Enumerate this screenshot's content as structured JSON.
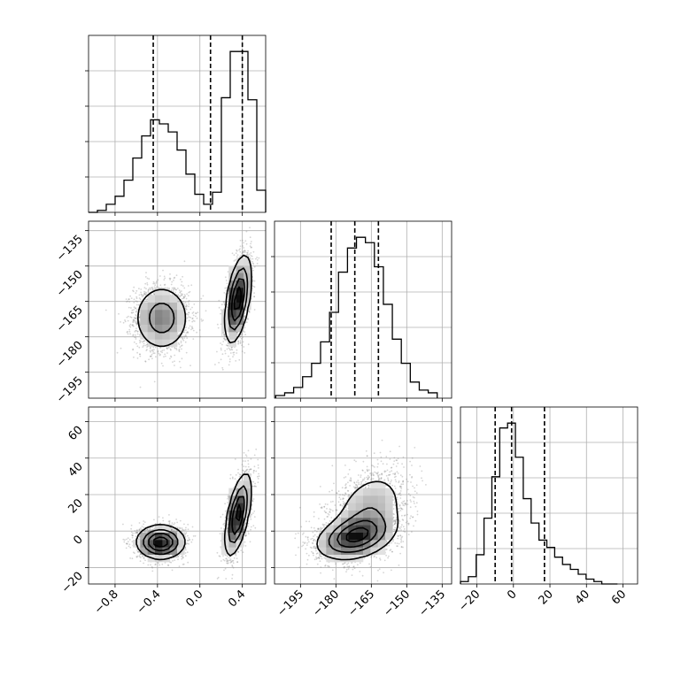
{
  "chart_data": {
    "type": "corner",
    "grid": true,
    "parameters": [
      {
        "ticks": [
          -0.8,
          -0.4,
          0.0,
          0.4
        ],
        "tick_labels": [
          "−0.8",
          "−0.4",
          "0.0",
          "0.4"
        ],
        "range": [
          -1.05,
          0.62
        ]
      },
      {
        "ticks": [
          -195,
          -180,
          -165,
          -150,
          -135
        ],
        "tick_labels": [
          "−195",
          "−180",
          "−165",
          "−150",
          "−135"
        ],
        "range": [
          -206,
          -131
        ]
      },
      {
        "ticks": [
          -20,
          0,
          20,
          40,
          60
        ],
        "tick_labels": [
          "−20",
          "0",
          "20",
          "40",
          "60"
        ],
        "range": [
          -29,
          68
        ]
      }
    ],
    "histograms": [
      {
        "param": 0,
        "bin_edges": [
          -1.05,
          -0.9665,
          -0.883,
          -0.7995,
          -0.716,
          -0.6325,
          -0.549,
          -0.4655,
          -0.382,
          -0.2985,
          -0.215,
          -0.1315,
          -0.048,
          0.0355,
          0.119,
          0.2025,
          0.286,
          0.3695,
          0.453,
          0.5365,
          0.62
        ],
        "counts": [
          0,
          1,
          4,
          8,
          16,
          27,
          38,
          46,
          44,
          40,
          31,
          19,
          9,
          4,
          10,
          57,
          80,
          80,
          56,
          11
        ],
        "quantiles": [
          -0.44,
          0.1,
          0.4
        ]
      },
      {
        "param": 1,
        "bin_edges": [
          -205.5,
          -201.7,
          -197.9,
          -194.1,
          -190.3,
          -186.5,
          -182.7,
          -178.9,
          -175.1,
          -171.3,
          -167.5,
          -163.7,
          -159.9,
          -156.1,
          -152.3,
          -148.5,
          -144.7,
          -140.9,
          -137.1
        ],
        "counts": [
          1,
          2,
          4,
          8,
          13,
          21,
          32,
          47,
          56,
          60,
          58,
          49,
          35,
          22,
          13,
          6,
          3,
          2
        ],
        "quantiles": [
          -182,
          -172,
          -162
        ]
      },
      {
        "param": 2,
        "bin_edges": [
          -29,
          -24.7,
          -20.4,
          -16.1,
          -11.8,
          -7.5,
          -3.2,
          1.1,
          5.4,
          9.7,
          14,
          18.3,
          22.6,
          26.9,
          31.2,
          35.5,
          39.8,
          44.1,
          48.4,
          52.7,
          57
        ],
        "counts": [
          1,
          3,
          12,
          27,
          44,
          64,
          66,
          52,
          35,
          25,
          18,
          15,
          11,
          8,
          6,
          4,
          2,
          1,
          0,
          0
        ],
        "quantiles": [
          -10,
          -1,
          17
        ]
      }
    ],
    "pairs": [
      {
        "x": 0,
        "y": 1,
        "clusters": [
          {
            "center": [
              -0.36,
              -172
            ],
            "spread": [
              0.13,
              7
            ],
            "rho": 0.0,
            "n": 2000
          },
          {
            "center": [
              0.36,
              -164
            ],
            "spread": [
              0.06,
              9
            ],
            "rho": 0.5,
            "n": 2000
          }
        ]
      },
      {
        "x": 0,
        "y": 2,
        "clusters": [
          {
            "center": [
              -0.37,
              -6
            ],
            "spread": [
              0.11,
              4.5
            ],
            "rho": 0.0,
            "n": 2000
          },
          {
            "center": [
              0.36,
              9
            ],
            "spread": [
              0.06,
              11
            ],
            "rho": 0.6,
            "n": 2000
          }
        ]
      },
      {
        "x": 1,
        "y": 2,
        "clusters": [
          {
            "center": [
              -172,
              -3
            ],
            "spread": [
              8,
              6
            ],
            "rho": 0.35,
            "n": 2200
          },
          {
            "center": [
              -166,
              10
            ],
            "spread": [
              8,
              12
            ],
            "rho": 0.3,
            "n": 1800
          }
        ]
      }
    ]
  }
}
